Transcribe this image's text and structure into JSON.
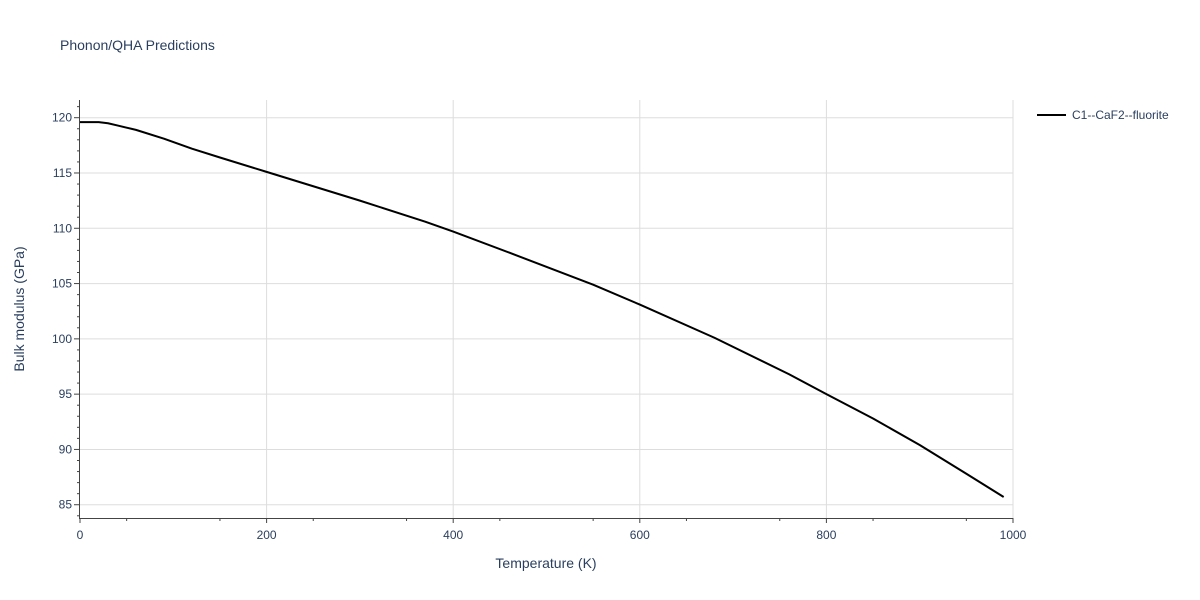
{
  "chart_data": {
    "type": "line",
    "title": "Phonon/QHA Predictions",
    "xlabel": "Temperature (K)",
    "ylabel": "Bulk modulus (GPa)",
    "xlim": [
      0,
      1000
    ],
    "ylim": [
      83.8,
      121.6
    ],
    "xticks": [
      0,
      200,
      400,
      600,
      800,
      1000
    ],
    "yticks": [
      85,
      90,
      95,
      100,
      105,
      110,
      115,
      120
    ],
    "grid": true,
    "legend_position": "top-right",
    "series": [
      {
        "name": "C1--CaF2--fluorite",
        "color": "#000000",
        "x": [
          0,
          10,
          20,
          30,
          40,
          60,
          90,
          120,
          150,
          200,
          250,
          300,
          370,
          400,
          460,
          550,
          600,
          680,
          760,
          800,
          850,
          900,
          950,
          990
        ],
        "y": [
          119.6,
          119.6,
          119.6,
          119.5,
          119.3,
          118.9,
          118.1,
          117.2,
          116.4,
          115.1,
          113.8,
          112.5,
          110.6,
          109.7,
          107.8,
          104.9,
          103.1,
          100.1,
          96.8,
          95.0,
          92.8,
          90.4,
          87.8,
          85.7
        ]
      }
    ]
  }
}
